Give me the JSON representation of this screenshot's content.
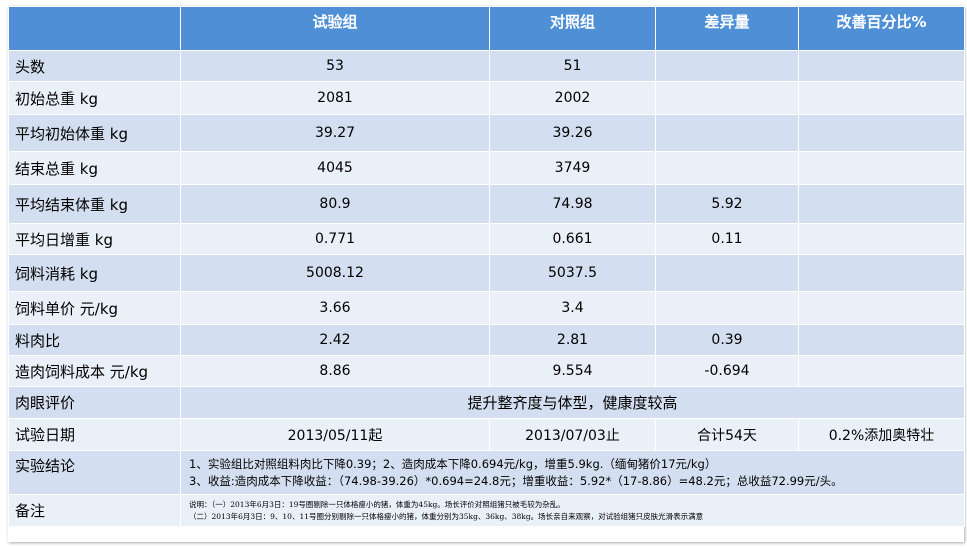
{
  "header": {
    "col0": "",
    "col1": "试验组",
    "col2": "对照组",
    "col3": "差异量",
    "col4": "改善百分比%"
  },
  "rows": [
    {
      "label": "头数",
      "a": "53",
      "b": "51",
      "diff": "",
      "pct": ""
    },
    {
      "label": "初始总重 kg",
      "a": "2081",
      "b": "2002",
      "diff": "",
      "pct": ""
    },
    {
      "label": "平均初始体重 kg",
      "a": "39.27",
      "b": "39.26",
      "diff": "",
      "pct": ""
    },
    {
      "label": "结束总重 kg",
      "a": "4045",
      "b": "3749",
      "diff": "",
      "pct": ""
    },
    {
      "label": "平均结束体重 kg",
      "a": "80.9",
      "b": "74.98",
      "diff": "5.92",
      "pct": ""
    },
    {
      "label": "平均日增重 kg",
      "a": "0.771",
      "b": "0.661",
      "diff": "0.11",
      "pct": ""
    },
    {
      "label": "饲料消耗 kg",
      "a": "5008.12",
      "b": "5037.5",
      "diff": "",
      "pct": ""
    },
    {
      "label": "饲料单价 元/kg",
      "a": "3.66",
      "b": "3.4",
      "diff": "",
      "pct": ""
    },
    {
      "label": "料肉比",
      "a": "2.42",
      "b": "2.81",
      "diff": "0.39",
      "pct": ""
    },
    {
      "label": "造肉饲料成本 元/kg",
      "a": "8.86",
      "b": "9.554",
      "diff": "-0.694",
      "pct": ""
    }
  ],
  "visual": {
    "label": "肉眼评价",
    "text": "提升整齐度与体型，健康度较高"
  },
  "trial_date": {
    "label": "试验日期",
    "start": "2013/05/11起",
    "end": "2013/07/03止",
    "total": "合计54天",
    "additive": "0.2%添加奥特壮"
  },
  "conclusion": {
    "label": "实验结论",
    "line1": "1、实验组比对照组料肉比下降0.39；2、造肉成本下降0.694元/kg，增重5.9kg.（缅甸猪价17元/kg）",
    "line2": "3、收益:造肉成本下降收益：（74.98-39.26）*0.694=24.8元；增重收益：5.92*（17-8.86）=48.2元；总收益72.99元/头。"
  },
  "remarks": {
    "label": "备注",
    "line1": "说明：（一）2013年6月3日：19号圈剔除一只体格瘦小的猪，体重为45kg。场长评价对照组猪只被毛较为杂乱。",
    "line2": "（二）2013年6月3日：9、10、11号圈分别剔除一只体格瘦小的猪，体重分别为35kg、36kg、38kg。场长亲自来观察，对试验组猪只皮肤光滑表示满意"
  },
  "colors": {
    "header_bg": "#4f8fd6",
    "row_dark": "#d3dff0",
    "row_light": "#eaf0f8"
  }
}
